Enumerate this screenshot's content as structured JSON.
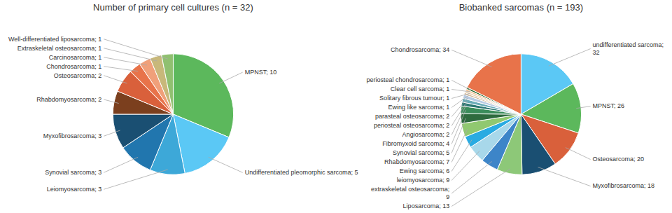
{
  "chart_data": [
    {
      "type": "pie",
      "title": "Number of primary cell cultures (n = 32)",
      "categories": [
        "MPNST; 10",
        "Undifferentiated pleomorphic sarcoma; 5",
        "Leiomyosarcoma; 3",
        "Synovial sarcoma; 3",
        "Myxofibrosarcoma; 3",
        "Rhabdomyosarcoma; 2",
        "Osteosarcoma; 2",
        "Chondrosarcoma; 1",
        "Carcinosarcoma; 1",
        "Extraskeletal osteosarcoma; 1",
        "Well-differentiated liposarcoma; 1"
      ],
      "values": [
        10,
        5,
        3,
        3,
        3,
        2,
        2,
        1,
        1,
        1,
        1
      ],
      "colors": [
        "#5cb85c",
        "#5bc8f5",
        "#3da8d8",
        "#2176ae",
        "#1a4f72",
        "#7b3f1e",
        "#d9603b",
        "#e8734a",
        "#f0a07a",
        "#c8b87a",
        "#90c070"
      ]
    },
    {
      "type": "pie",
      "title": "Biobanked sarcomas (n = 193)",
      "categories": [
        "undifferentiated sarcoma;\n32",
        "MPNST; 26",
        "Osteosarcoma; 20",
        "Myxofibrosarcoma; 18",
        "Liposarcoma; 13",
        "extraskeletal osteosarcoma;\n9",
        "leiomyosarcoma; 9",
        "Ewing sarcoma; 6",
        "Rhabdomyosarcoma; 7",
        "Synovial sarcoma; 5",
        "Fibromyxoid sarcoma; 4",
        "Angiosarcoma; 2",
        "periosteal osteosarcoma; 2",
        "parasteal osteosarcoma; 2",
        "Ewing like sarcoma; 1",
        "Solitary fibrous tumour; 1",
        "Clear cell sarcoma; 1",
        "periosteal chondrosarcoma; 1",
        "Chondrosarcoma; 34"
      ],
      "values": [
        32,
        26,
        20,
        18,
        13,
        9,
        9,
        6,
        7,
        5,
        4,
        2,
        2,
        2,
        1,
        1,
        1,
        1,
        34
      ],
      "colors": [
        "#5bc8f5",
        "#5cb85c",
        "#d9603b",
        "#1a4f72",
        "#8dc878",
        "#3d85c8",
        "#a8d8ea",
        "#29abe2",
        "#90c870",
        "#2e6b3e",
        "#3a8c5a",
        "#2c7873",
        "#6aacb8",
        "#b8cce4",
        "#d4b896",
        "#e8d0b0",
        "#f4c090",
        "#2d6a2d",
        "#e8734a"
      ]
    }
  ]
}
